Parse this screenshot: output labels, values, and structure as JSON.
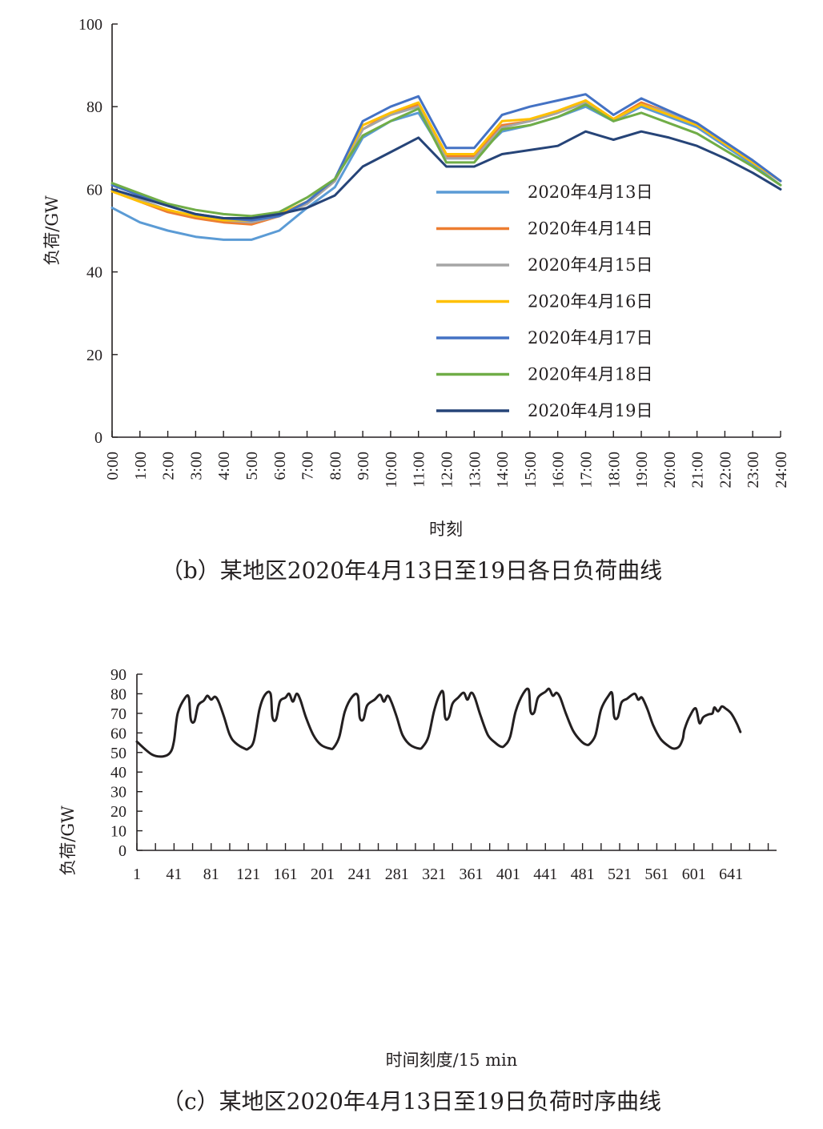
{
  "chart_data": [
    {
      "type": "line",
      "ylabel": "负荷/GW",
      "xlabel": "时刻",
      "caption": "（b）某地区2020年4月13日至19日各日负荷曲线",
      "ylim": [
        0,
        100
      ],
      "yticks": [
        "0",
        "20",
        "40",
        "60",
        "80",
        "100"
      ],
      "x_ticks": [
        "0:00",
        "1:00",
        "2:00",
        "3:00",
        "4:00",
        "5:00",
        "6:00",
        "7:00",
        "8:00",
        "9:00",
        "10:00",
        "11:00",
        "12:00",
        "13:00",
        "14:00",
        "15:00",
        "16:00",
        "17:00",
        "18:00",
        "19:00",
        "20:00",
        "21:00",
        "22:00",
        "23:00",
        "24:00"
      ],
      "x": [
        0,
        1,
        2,
        3,
        4,
        5,
        6,
        7,
        8,
        9,
        10,
        11,
        12,
        13,
        14,
        15,
        16,
        17,
        18,
        19,
        20,
        21,
        22,
        23,
        24
      ],
      "legend_position": "center-right",
      "series": [
        {
          "name": "2020年4月13日",
          "color": "#5b9bd5",
          "values": [
            55.5,
            52,
            50,
            48.5,
            47.8,
            47.8,
            50,
            55.5,
            60.5,
            72.5,
            76.5,
            78.5,
            67.5,
            67.5,
            74,
            75.5,
            77.5,
            80,
            76.5,
            80,
            77.5,
            75,
            70.5,
            66,
            61
          ]
        },
        {
          "name": "2020年4月14日",
          "color": "#ed7d31",
          "values": [
            59.5,
            57,
            54.5,
            53,
            52,
            51.5,
            53.5,
            56.5,
            62,
            74.5,
            78.5,
            80.5,
            68,
            68,
            75.5,
            76.5,
            78.5,
            81.5,
            77,
            81,
            78.5,
            75.5,
            71,
            66.5,
            62
          ]
        },
        {
          "name": "2020年4月15日",
          "color": "#a5a5a5",
          "values": [
            60,
            57.5,
            55,
            53.5,
            52.5,
            52,
            53.5,
            56.5,
            62,
            74.5,
            78,
            80,
            67.5,
            67.5,
            75,
            76.5,
            78.5,
            81,
            76.5,
            80.5,
            78.5,
            76,
            71.5,
            67,
            62
          ]
        },
        {
          "name": "2020年4月16日",
          "color": "#ffc000",
          "values": [
            59.5,
            57,
            55,
            53.5,
            52.5,
            52.5,
            54,
            57,
            62.5,
            75.5,
            78.5,
            81,
            68.5,
            68.5,
            76.5,
            77,
            79,
            81.5,
            77,
            80.5,
            78,
            75.5,
            71,
            66.5,
            62
          ]
        },
        {
          "name": "2020年4月17日",
          "color": "#4472c4",
          "values": [
            61,
            58.5,
            56,
            54,
            53,
            52.5,
            53.5,
            57,
            62.5,
            76.5,
            80,
            82.5,
            70,
            70,
            78,
            80,
            81.5,
            83,
            78,
            82,
            79,
            76,
            71.5,
            67,
            62
          ]
        },
        {
          "name": "2020年4月18日",
          "color": "#70ad47",
          "values": [
            61.5,
            59,
            56.5,
            55,
            54,
            53.5,
            54.5,
            58,
            62.5,
            73,
            76.5,
            79.5,
            66.5,
            66.5,
            74.5,
            75.5,
            77.5,
            80.5,
            76.5,
            78.5,
            76,
            73.5,
            69.5,
            65.5,
            61
          ]
        },
        {
          "name": "2020年4月19日",
          "color": "#264478",
          "values": [
            60,
            58,
            56,
            54,
            53,
            53,
            54,
            55.5,
            58.5,
            65.5,
            69,
            72.5,
            65.5,
            65.5,
            68.5,
            69.5,
            70.5,
            74,
            72,
            74,
            72.5,
            70.5,
            67.5,
            64,
            60
          ]
        }
      ]
    },
    {
      "type": "line",
      "ylabel": "负荷/GW",
      "xlabel": "时间刻度/15 min",
      "caption": "（c）某地区2020年4月13日至19日负荷时序曲线",
      "ylim": [
        0,
        90
      ],
      "yticks": [
        "0",
        "10",
        "20",
        "30",
        "40",
        "50",
        "60",
        "70",
        "80",
        "90"
      ],
      "x_ticks": [
        "1",
        "41",
        "81",
        "121",
        "161",
        "201",
        "241",
        "281",
        "321",
        "361",
        "401",
        "441",
        "481",
        "521",
        "561",
        "601",
        "641"
      ],
      "x_tick_values": [
        1,
        41,
        81,
        121,
        161,
        201,
        241,
        281,
        321,
        361,
        401,
        441,
        481,
        521,
        561,
        601,
        641
      ],
      "xlim": [
        1,
        690
      ],
      "series": [
        {
          "name": "",
          "color": "#231f20",
          "points": [
            [
              1,
              55.5
            ],
            [
              17,
              49
            ],
            [
              29,
              48
            ],
            [
              37,
              50
            ],
            [
              41,
              56
            ],
            [
              45,
              70
            ],
            [
              53,
              78
            ],
            [
              57,
              78
            ],
            [
              59,
              67
            ],
            [
              63,
              66
            ],
            [
              67,
              74
            ],
            [
              73,
              76.5
            ],
            [
              77,
              79
            ],
            [
              81,
              77
            ],
            [
              85,
              78.5
            ],
            [
              89,
              76
            ],
            [
              95,
              68
            ],
            [
              101,
              59
            ],
            [
              107,
              55
            ],
            [
              117,
              52
            ],
            [
              121,
              52
            ],
            [
              127,
              56
            ],
            [
              133,
              72
            ],
            [
              139,
              79.5
            ],
            [
              145,
              80
            ],
            [
              147,
              68
            ],
            [
              151,
              67
            ],
            [
              155,
              76
            ],
            [
              161,
              78
            ],
            [
              165,
              80
            ],
            [
              169,
              76
            ],
            [
              173,
              80
            ],
            [
              177,
              77
            ],
            [
              183,
              68
            ],
            [
              191,
              59
            ],
            [
              199,
              54
            ],
            [
              209,
              52
            ],
            [
              213,
              52.5
            ],
            [
              219,
              58
            ],
            [
              225,
              71
            ],
            [
              233,
              78.5
            ],
            [
              239,
              79
            ],
            [
              241,
              68
            ],
            [
              245,
              67
            ],
            [
              249,
              74
            ],
            [
              257,
              77
            ],
            [
              263,
              79.5
            ],
            [
              267,
              76
            ],
            [
              271,
              79
            ],
            [
              275,
              76
            ],
            [
              281,
              68
            ],
            [
              287,
              59
            ],
            [
              295,
              54
            ],
            [
              305,
              52
            ],
            [
              309,
              53
            ],
            [
              315,
              58
            ],
            [
              321,
              71
            ],
            [
              327,
              79.5
            ],
            [
              331,
              80.5
            ],
            [
              333,
              68
            ],
            [
              337,
              68
            ],
            [
              341,
              75
            ],
            [
              347,
              78
            ],
            [
              353,
              80.5
            ],
            [
              357,
              77
            ],
            [
              361,
              80.5
            ],
            [
              365,
              78
            ],
            [
              371,
              69
            ],
            [
              379,
              59
            ],
            [
              387,
              55
            ],
            [
              393,
              53
            ],
            [
              397,
              53.5
            ],
            [
              403,
              58
            ],
            [
              409,
              71
            ],
            [
              417,
              80
            ],
            [
              423,
              82
            ],
            [
              425,
              71
            ],
            [
              429,
              70.5
            ],
            [
              433,
              78
            ],
            [
              441,
              81
            ],
            [
              445,
              82.5
            ],
            [
              449,
              79
            ],
            [
              453,
              80.5
            ],
            [
              457,
              78
            ],
            [
              463,
              70
            ],
            [
              471,
              61
            ],
            [
              479,
              56
            ],
            [
              485,
              54
            ],
            [
              489,
              54.5
            ],
            [
              495,
              59
            ],
            [
              501,
              72
            ],
            [
              509,
              79
            ],
            [
              513,
              80
            ],
            [
              515,
              68.5
            ],
            [
              519,
              68
            ],
            [
              523,
              75.5
            ],
            [
              529,
              77.5
            ],
            [
              537,
              80
            ],
            [
              541,
              77
            ],
            [
              545,
              78
            ],
            [
              551,
              72
            ],
            [
              557,
              64
            ],
            [
              565,
              57
            ],
            [
              573,
              53.5
            ],
            [
              579,
              52
            ],
            [
              585,
              53
            ],
            [
              589,
              57
            ],
            [
              591,
              62
            ],
            [
              597,
              69
            ],
            [
              603,
              72.5
            ],
            [
              607,
              65
            ],
            [
              611,
              68
            ],
            [
              617,
              69.5
            ],
            [
              621,
              70
            ],
            [
              623,
              73
            ],
            [
              627,
              71
            ],
            [
              631,
              73.5
            ],
            [
              635,
              72.5
            ],
            [
              641,
              70
            ],
            [
              647,
              65
            ],
            [
              651,
              60.5
            ]
          ]
        }
      ]
    }
  ]
}
